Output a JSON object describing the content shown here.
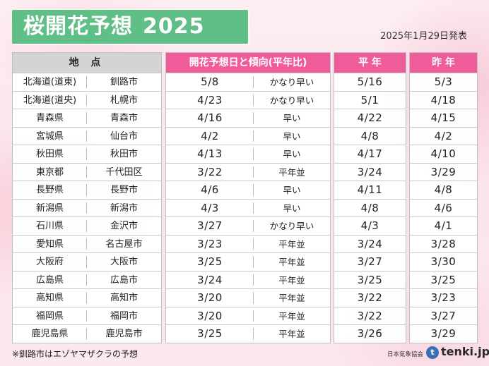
{
  "title": "桜開花予想",
  "year": "2025",
  "announced": "2025年1月29日発表",
  "headers": {
    "location": "地 点",
    "forecast": "開花予想日と傾向(平年比)",
    "normal": "平 年",
    "last_year": "昨 年"
  },
  "rows": [
    {
      "pref": "北海道(道東)",
      "city": "釧路市",
      "date": "5/8",
      "trend": "かなり早い",
      "normal": "5/16",
      "last": "5/3"
    },
    {
      "pref": "北海道(道央)",
      "city": "札幌市",
      "date": "4/23",
      "trend": "かなり早い",
      "normal": "5/1",
      "last": "4/18"
    },
    {
      "pref": "青森県",
      "city": "青森市",
      "date": "4/16",
      "trend": "早い",
      "normal": "4/22",
      "last": "4/15"
    },
    {
      "pref": "宮城県",
      "city": "仙台市",
      "date": "4/2",
      "trend": "早い",
      "normal": "4/8",
      "last": "4/2"
    },
    {
      "pref": "秋田県",
      "city": "秋田市",
      "date": "4/13",
      "trend": "早い",
      "normal": "4/17",
      "last": "4/10"
    },
    {
      "pref": "東京都",
      "city": "千代田区",
      "date": "3/22",
      "trend": "平年並",
      "normal": "3/24",
      "last": "3/29"
    },
    {
      "pref": "長野県",
      "city": "長野市",
      "date": "4/6",
      "trend": "早い",
      "normal": "4/11",
      "last": "4/8"
    },
    {
      "pref": "新潟県",
      "city": "新潟市",
      "date": "4/3",
      "trend": "早い",
      "normal": "4/8",
      "last": "4/6"
    },
    {
      "pref": "石川県",
      "city": "金沢市",
      "date": "3/27",
      "trend": "かなり早い",
      "normal": "4/3",
      "last": "4/1"
    },
    {
      "pref": "愛知県",
      "city": "名古屋市",
      "date": "3/23",
      "trend": "平年並",
      "normal": "3/24",
      "last": "3/28"
    },
    {
      "pref": "大阪府",
      "city": "大阪市",
      "date": "3/25",
      "trend": "平年並",
      "normal": "3/27",
      "last": "3/30"
    },
    {
      "pref": "広島県",
      "city": "広島市",
      "date": "3/24",
      "trend": "平年並",
      "normal": "3/25",
      "last": "3/25"
    },
    {
      "pref": "高知県",
      "city": "高知市",
      "date": "3/20",
      "trend": "平年並",
      "normal": "3/22",
      "last": "3/23"
    },
    {
      "pref": "福岡県",
      "city": "福岡市",
      "date": "3/20",
      "trend": "平年並",
      "normal": "3/22",
      "last": "3/27"
    },
    {
      "pref": "鹿児島県",
      "city": "鹿児島市",
      "date": "3/25",
      "trend": "平年並",
      "normal": "3/26",
      "last": "3/29"
    }
  ],
  "footnote": "※釧路市はエゾヤマザクラの予想",
  "credit": "日本気象協会",
  "brand": "tenki.jp",
  "colors": {
    "title_bg": "#5fbf86",
    "header_pink": "#ee5c9a",
    "header_gray": "#d4d4d4"
  }
}
